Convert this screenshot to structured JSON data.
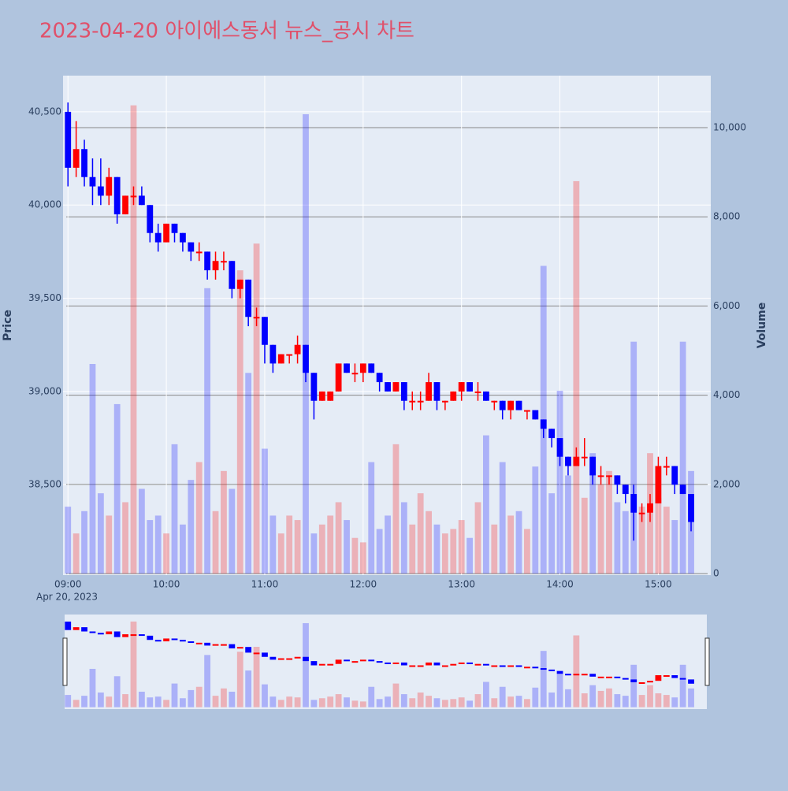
{
  "chart_data": {
    "type": "candlestick",
    "title": "2023-04-20 아이에스동서 뉴스_공시 차트",
    "x": [
      "09:00",
      "09:05",
      "09:10",
      "09:15",
      "09:20",
      "09:25",
      "09:30",
      "09:35",
      "09:40",
      "09:45",
      "09:50",
      "09:55",
      "10:00",
      "10:05",
      "10:10",
      "10:15",
      "10:20",
      "10:25",
      "10:30",
      "10:35",
      "10:40",
      "10:45",
      "10:50",
      "10:55",
      "11:00",
      "11:05",
      "11:10",
      "11:15",
      "11:20",
      "11:25",
      "11:30",
      "11:35",
      "11:40",
      "11:45",
      "11:50",
      "11:55",
      "12:00",
      "12:05",
      "12:10",
      "12:15",
      "12:20",
      "12:25",
      "12:30",
      "12:35",
      "12:40",
      "12:45",
      "12:50",
      "12:55",
      "13:00",
      "13:05",
      "13:10",
      "13:15",
      "13:20",
      "13:25",
      "13:30",
      "13:35",
      "13:40",
      "13:45",
      "13:50",
      "13:55",
      "14:00",
      "14:05",
      "14:10",
      "14:15",
      "14:20",
      "14:25",
      "14:30",
      "14:35",
      "14:40",
      "14:45",
      "14:50",
      "14:55",
      "15:00",
      "15:05",
      "15:10",
      "15:15",
      "15:20"
    ],
    "open": [
      40500,
      40200,
      40300,
      40150,
      40100,
      40050,
      40150,
      39950,
      40050,
      40050,
      40000,
      39850,
      39800,
      39900,
      39850,
      39800,
      39750,
      39750,
      39650,
      39700,
      39700,
      39550,
      39600,
      39400,
      39400,
      39250,
      39150,
      39200,
      39200,
      39250,
      39100,
      38950,
      38950,
      39000,
      39150,
      39100,
      39100,
      39150,
      39100,
      39050,
      39000,
      39050,
      38950,
      38950,
      38950,
      39050,
      38950,
      38950,
      39000,
      39050,
      39000,
      39000,
      38950,
      38950,
      38900,
      38950,
      38900,
      38900,
      38850,
      38800,
      38750,
      38650,
      38600,
      38650,
      38650,
      38550,
      38550,
      38550,
      38500,
      38450,
      38350,
      38350,
      38400,
      38600,
      38600,
      38500,
      38450
    ],
    "high": [
      40550,
      40450,
      40350,
      40250,
      40250,
      40200,
      40150,
      40050,
      40100,
      40100,
      40000,
      39900,
      39900,
      39900,
      39850,
      39800,
      39800,
      39750,
      39750,
      39750,
      39700,
      39600,
      39600,
      39450,
      39400,
      39250,
      39200,
      39200,
      39300,
      39250,
      39100,
      39000,
      39000,
      39150,
      39150,
      39150,
      39150,
      39150,
      39100,
      39050,
      39050,
      39050,
      39000,
      39000,
      39100,
      39050,
      38950,
      39000,
      39050,
      39050,
      39050,
      39000,
      38950,
      38950,
      38950,
      38950,
      38900,
      38900,
      38850,
      38800,
      38750,
      38650,
      38700,
      38750,
      38650,
      38600,
      38550,
      38550,
      38500,
      38500,
      38400,
      38450,
      38650,
      38650,
      38600,
      38500,
      38450
    ],
    "low": [
      40100,
      40150,
      40100,
      40000,
      40000,
      40000,
      39900,
      39950,
      40000,
      40000,
      39800,
      39750,
      39800,
      39800,
      39750,
      39700,
      39700,
      39600,
      39600,
      39650,
      39500,
      39500,
      39350,
      39350,
      39150,
      39100,
      39150,
      39150,
      39150,
      39050,
      38850,
      38950,
      38950,
      39000,
      39100,
      39050,
      39050,
      39100,
      39000,
      39000,
      39000,
      38900,
      38900,
      38900,
      38950,
      38900,
      38900,
      38950,
      38950,
      39000,
      38950,
      38950,
      38900,
      38850,
      38850,
      38900,
      38850,
      38850,
      38750,
      38700,
      38600,
      38550,
      38600,
      38600,
      38500,
      38500,
      38500,
      38450,
      38400,
      38200,
      38300,
      38300,
      38400,
      38550,
      38450,
      38450,
      38250
    ],
    "close": [
      40200,
      40300,
      40150,
      40100,
      40050,
      40150,
      39950,
      40050,
      40050,
      40000,
      39850,
      39800,
      39900,
      39850,
      39800,
      39750,
      39750,
      39650,
      39700,
      39700,
      39550,
      39600,
      39400,
      39400,
      39250,
      39150,
      39200,
      39200,
      39250,
      39100,
      38950,
      39000,
      39000,
      39150,
      39100,
      39100,
      39150,
      39100,
      39050,
      39000,
      39050,
      38950,
      38950,
      38950,
      39050,
      38950,
      38950,
      39000,
      39050,
      39000,
      39000,
      38950,
      38950,
      38900,
      38950,
      38900,
      38900,
      38850,
      38800,
      38750,
      38650,
      38600,
      38650,
      38650,
      38550,
      38550,
      38550,
      38500,
      38450,
      38350,
      38350,
      38400,
      38600,
      38600,
      38500,
      38450,
      38300
    ],
    "volume": [
      1500,
      900,
      1400,
      4700,
      1800,
      1300,
      3800,
      1600,
      10500,
      1900,
      1200,
      1300,
      900,
      2900,
      1100,
      2100,
      2500,
      6400,
      1400,
      2300,
      1900,
      6800,
      4500,
      7400,
      2800,
      1300,
      900,
      1300,
      1200,
      10300,
      900,
      1100,
      1300,
      1600,
      1200,
      800,
      700,
      2500,
      1000,
      1300,
      2900,
      1600,
      1100,
      1800,
      1400,
      1100,
      900,
      1000,
      1200,
      800,
      1600,
      3100,
      1100,
      2500,
      1300,
      1400,
      1000,
      2400,
      6900,
      1800,
      4100,
      2200,
      8800,
      1700,
      2700,
      2000,
      2300,
      1600,
      1400,
      5200,
      1500,
      2700,
      1700,
      1500,
      1200,
      5200,
      2300
    ],
    "increasing_color": "#ff0000",
    "decreasing_color": "#0000ff",
    "xlim": [
      "08:57",
      "15:32"
    ],
    "xticks": [
      "09:00",
      "10:00",
      "11:00",
      "12:00",
      "13:00",
      "14:00",
      "15:00"
    ],
    "date_label": "Apr 20, 2023",
    "ylabel": "Price",
    "y2label": "Volume",
    "ylim": [
      38015,
      40694
    ],
    "yticks": [
      {
        "value": 38500,
        "label": "38,500"
      },
      {
        "value": 39000,
        "label": "39,000"
      },
      {
        "value": 39500,
        "label": "39,500"
      },
      {
        "value": 40000,
        "label": "40,000"
      },
      {
        "value": 40500,
        "label": "40,500"
      }
    ],
    "y2lim": [
      -35,
      11166
    ],
    "y2ticks": [
      0,
      {
        "value": 2000,
        "label": "2,000"
      },
      {
        "value": 4000,
        "label": "4,000"
      },
      {
        "value": 6000,
        "label": "6,000"
      },
      {
        "value": 8000,
        "label": "8,000"
      },
      {
        "value": 10000,
        "label": "10,000"
      }
    ]
  }
}
